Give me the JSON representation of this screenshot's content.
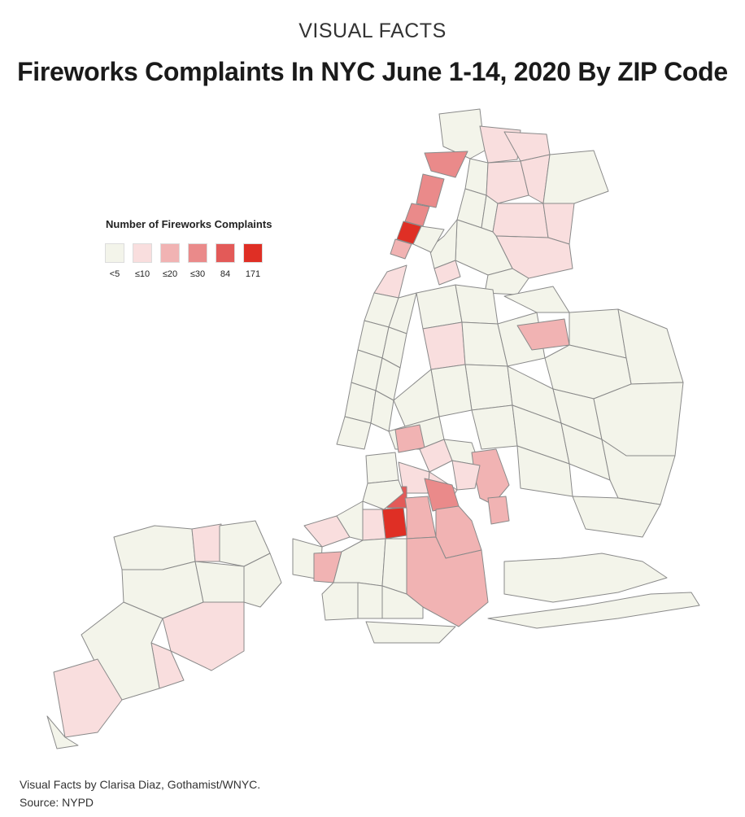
{
  "kicker": "VISUAL FACTS",
  "title": "Fireworks Complaints In NYC June 1-14, 2020 By ZIP Code",
  "legend": {
    "title": "Number of Fireworks Complaints",
    "items": [
      {
        "label": "<5",
        "color": "#f3f4ea"
      },
      {
        "label": "≤10",
        "color": "#f9dede"
      },
      {
        "label": "≤20",
        "color": "#f1b3b3"
      },
      {
        "label": "≤30",
        "color": "#ea8a8a"
      },
      {
        "label": "84",
        "color": "#e35a58"
      },
      {
        "label": "171",
        "color": "#df2f25"
      }
    ]
  },
  "credit": {
    "line1": "Visual Facts by Clarisa Diaz, Gothamist/WNYC.",
    "line2": "Source: NYPD"
  },
  "colors": {
    "zero": "#ffffff",
    "border": "#8a8a8a"
  }
}
